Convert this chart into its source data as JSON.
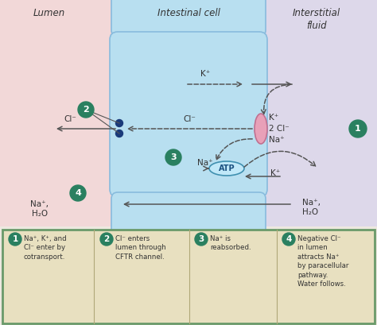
{
  "bg_color": "#f5f0e8",
  "lumen_bg": "#f2d8d8",
  "interstitial_bg": "#ddd8ea",
  "cell_color": "#b8dff0",
  "cell_border": "#88bbdd",
  "bottom_panel_bg": "#e8e0c0",
  "bottom_panel_border": "#6a9a6a",
  "circle_color": "#2a8060",
  "circle_text": "#ffffff",
  "transporter_color": "#e8a0b8",
  "transporter_border": "#c07090",
  "atp_color": "#c0e8f8",
  "atp_border": "#4090b0",
  "text_color": "#333333",
  "arrow_color": "#555555",
  "dot_color": "#1a3a7a",
  "title_lumen": "Lumen",
  "title_cell": "Intestinal cell",
  "title_interstitial": "Interstitial\nfluid",
  "K_top": "K⁺",
  "K_mid": "K⁺",
  "K_bot": "K⁺",
  "Cl_lumen": "Cl⁻",
  "Cl_cell": "Cl⁻",
  "Cl_transporter": "2 Cl⁻",
  "Na_transporter": "Na⁺",
  "Na_atp": "Na⁺",
  "Na_lumen_bot": "Na⁺,\nH₂O",
  "Na_inter_bot": "Na⁺,\nH₂O",
  "ATP": "ATP",
  "legend": [
    {
      "num": "1",
      "text": "Na⁺, K⁺, and\nCl⁻ enter by\ncotransport."
    },
    {
      "num": "2",
      "text": "Cl⁻ enters\nlumen through\nCFTR channel."
    },
    {
      "num": "3",
      "text": "Na⁺ is\nreabsorbed."
    },
    {
      "num": "4",
      "text": "Negative Cl⁻\nin lumen\nattracts Na⁺\nby paracellular\npathway.\nWater follows."
    }
  ]
}
